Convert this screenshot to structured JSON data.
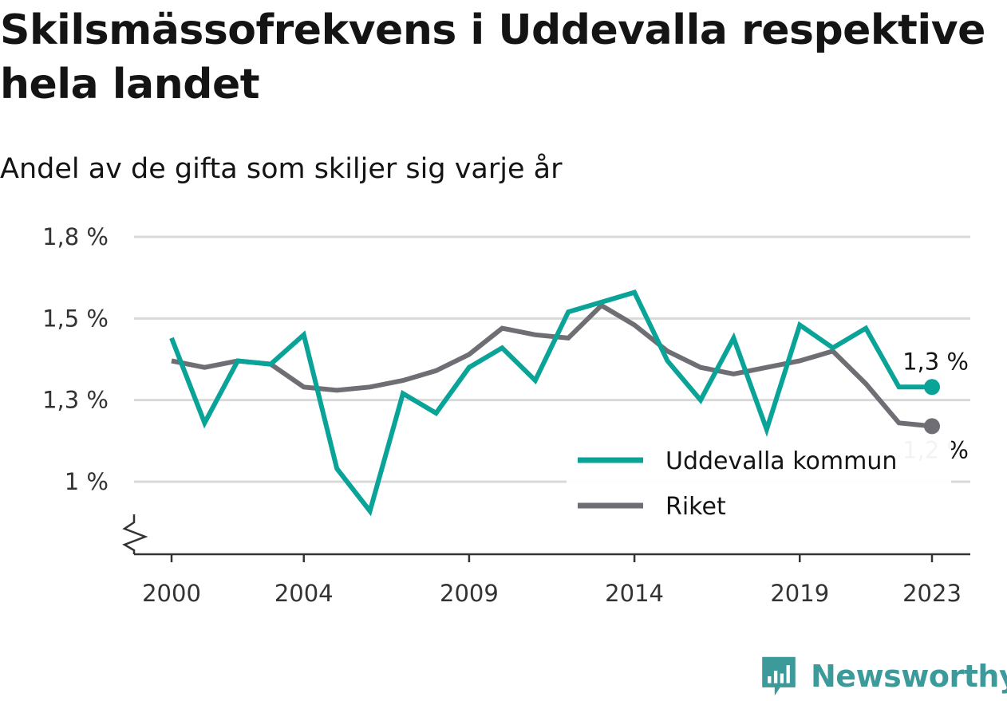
{
  "title": "Skilsmässofrekvens i Uddevalla respektive hela landet",
  "subtitle": "Andel av de gifta som skiljer sig varje år",
  "brand": "Newsworthy",
  "colors": {
    "uddevalla": "#0aa398",
    "riket": "#6e6e74",
    "grid": "#d9d9d9",
    "axis": "#333333",
    "brand": "#3d9a9a"
  },
  "chart_data": {
    "type": "line",
    "x": [
      2000,
      2001,
      2002,
      2003,
      2004,
      2005,
      2006,
      2007,
      2008,
      2009,
      2010,
      2011,
      2012,
      2013,
      2014,
      2015,
      2016,
      2017,
      2018,
      2019,
      2020,
      2021,
      2022,
      2023
    ],
    "xticks": [
      "2000",
      "2004",
      "2009",
      "2014",
      "2019",
      "2023"
    ],
    "ytick_labels": [
      {
        "value": 1.0,
        "label": "1 %"
      },
      {
        "value": 1.25,
        "label": "1,3 %"
      },
      {
        "value": 1.5,
        "label": "1,5 %"
      },
      {
        "value": 1.75,
        "label": "1,8 %"
      }
    ],
    "ylim": [
      0.77,
      1.78
    ],
    "axis_break": true,
    "grid": true,
    "legend_position": "bottom-right",
    "series": [
      {
        "name": "Uddevalla kommun",
        "color_key": "uddevalla",
        "values": [
          1.44,
          1.18,
          1.37,
          1.36,
          1.45,
          1.04,
          0.91,
          1.27,
          1.21,
          1.35,
          1.41,
          1.31,
          1.52,
          1.55,
          1.58,
          1.37,
          1.25,
          1.44,
          1.16,
          1.48,
          1.41,
          1.47,
          1.29,
          1.29
        ],
        "end_label": "1,3 %"
      },
      {
        "name": "Riket",
        "color_key": "riket",
        "values": [
          1.37,
          1.35,
          1.37,
          1.36,
          1.29,
          1.28,
          1.29,
          1.31,
          1.34,
          1.39,
          1.47,
          1.45,
          1.44,
          1.54,
          1.48,
          1.4,
          1.35,
          1.33,
          1.35,
          1.37,
          1.4,
          1.3,
          1.18,
          1.17
        ],
        "end_label": "1,2 %"
      }
    ]
  }
}
